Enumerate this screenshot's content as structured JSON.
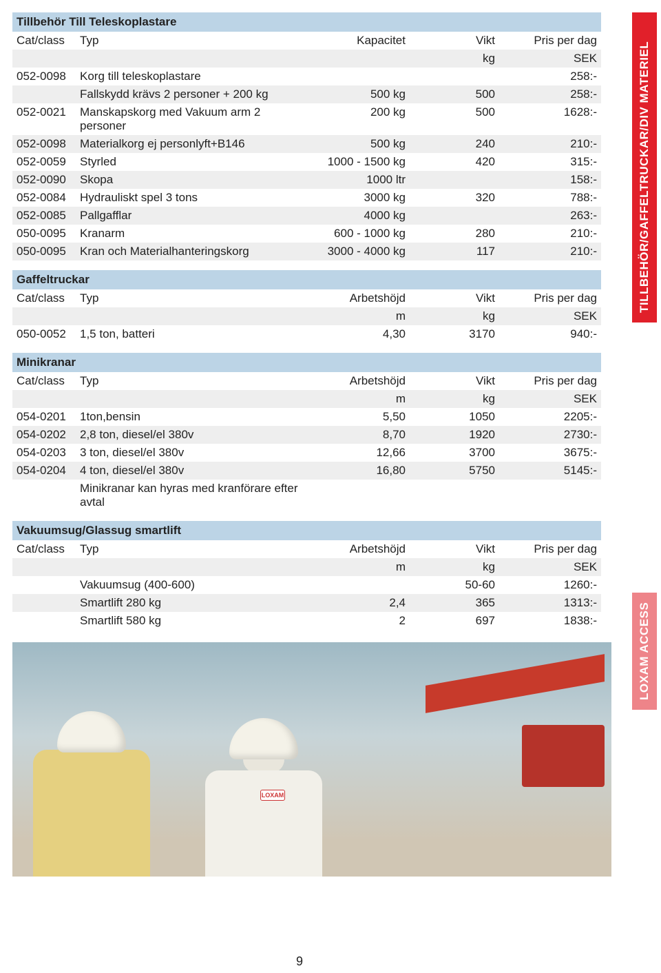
{
  "sideLabels": {
    "top": "TILLBEHÖR/GAFFELTRUCKAR/DIV MATERIEL",
    "mid": "LOXAM ACCESS"
  },
  "pageNumber": "9",
  "photoBadge": "LOXAM",
  "sections": [
    {
      "title": "Tillbehör Till Teleskoplastare",
      "header": {
        "catClass": "Cat/class",
        "typ": "Typ",
        "c3": "Kapacitet",
        "c4": "Vikt",
        "c5": "Pris per dag",
        "u3": "",
        "u4": "kg",
        "u5": "SEK"
      },
      "rows": [
        {
          "cat": "052-0098",
          "typ": "Korg till teleskoplastare",
          "c3": "",
          "c4": "",
          "c5": "258:-"
        },
        {
          "cat": "",
          "typ": "Fallskydd krävs 2 personer + 200 kg",
          "c3": "500 kg",
          "c4": "500",
          "c5": "258:-"
        },
        {
          "cat": "052-0021",
          "typ": "Manskapskorg med Vakuum arm 2 personer",
          "c3": "200 kg",
          "c4": "500",
          "c5": "1628:-"
        },
        {
          "cat": "052-0098",
          "typ": "Materialkorg ej personlyft+B146",
          "c3": "500 kg",
          "c4": "240",
          "c5": "210:-"
        },
        {
          "cat": "052-0059",
          "typ": "Styrled",
          "c3": "1000 - 1500 kg",
          "c4": "420",
          "c5": "315:-"
        },
        {
          "cat": "052-0090",
          "typ": "Skopa",
          "c3": "1000 ltr",
          "c4": "",
          "c5": "158:-"
        },
        {
          "cat": "052-0084",
          "typ": "Hydrauliskt spel 3 tons",
          "c3": "3000 kg",
          "c4": "320",
          "c5": "788:-"
        },
        {
          "cat": "052-0085",
          "typ": "Pallgafflar",
          "c3": "4000 kg",
          "c4": "",
          "c5": "263:-"
        },
        {
          "cat": "050-0095",
          "typ": "Kranarm",
          "c3": "600 - 1000 kg",
          "c4": "280",
          "c5": "210:-"
        },
        {
          "cat": "050-0095",
          "typ": "Kran och Materialhanteringskorg",
          "c3": "3000 - 4000 kg",
          "c4": "117",
          "c5": "210:-"
        }
      ]
    },
    {
      "title": "Gaffeltruckar",
      "header": {
        "catClass": "Cat/class",
        "typ": "Typ",
        "c3": "Arbetshöjd",
        "c4": "Vikt",
        "c5": "Pris per dag",
        "u3": "m",
        "u4": "kg",
        "u5": "SEK"
      },
      "rows": [
        {
          "cat": "050-0052",
          "typ": "1,5 ton, batteri",
          "c3": "4,30",
          "c4": "3170",
          "c5": "940:-"
        }
      ]
    },
    {
      "title": "Minikranar",
      "header": {
        "catClass": "Cat/class",
        "typ": "Typ",
        "c3": "Arbetshöjd",
        "c4": "Vikt",
        "c5": "Pris per dag",
        "u3": "m",
        "u4": "kg",
        "u5": "SEK"
      },
      "rows": [
        {
          "cat": "054-0201",
          "typ": "1ton,bensin",
          "c3": "5,50",
          "c4": "1050",
          "c5": "2205:-"
        },
        {
          "cat": "054-0202",
          "typ": "2,8 ton, diesel/el 380v",
          "c3": "8,70",
          "c4": "1920",
          "c5": "2730:-"
        },
        {
          "cat": "054-0203",
          "typ": "3 ton, diesel/el 380v",
          "c3": "12,66",
          "c4": "3700",
          "c5": "3675:-"
        },
        {
          "cat": "054-0204",
          "typ": "4 ton, diesel/el 380v",
          "c3": "16,80",
          "c4": "5750",
          "c5": "5145:-"
        },
        {
          "cat": "",
          "typ": "Minikranar kan hyras med kranförare efter avtal",
          "c3": "",
          "c4": "",
          "c5": ""
        }
      ]
    },
    {
      "title": "Vakuumsug/Glassug smartlift",
      "header": {
        "catClass": "Cat/class",
        "typ": "Typ",
        "c3": "Arbetshöjd",
        "c4": "Vikt",
        "c5": "Pris per dag",
        "u3": "m",
        "u4": "kg",
        "u5": "SEK"
      },
      "rows": [
        {
          "cat": "",
          "typ": "Vakuumsug (400-600)",
          "c3": "",
          "c4": "50-60",
          "c5": "1260:-"
        },
        {
          "cat": "",
          "typ": "Smartlift 280 kg",
          "c3": "2,4",
          "c4": "365",
          "c5": "1313:-"
        },
        {
          "cat": "",
          "typ": "Smartlift 580 kg",
          "c3": "2",
          "c4": "697",
          "c5": "1838:-"
        }
      ]
    }
  ]
}
